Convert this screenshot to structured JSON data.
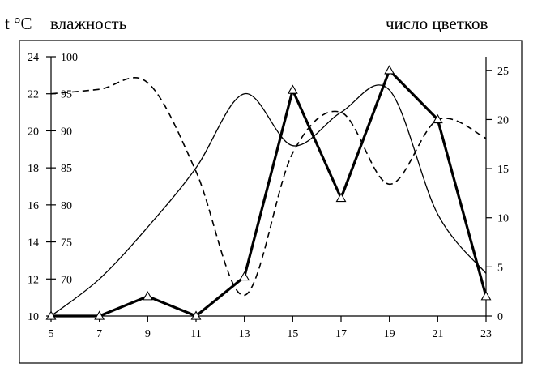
{
  "labels": {
    "temp_title": "t °C",
    "humidity_title": "влажность",
    "flowers_title": "число цветков"
  },
  "chart_data": {
    "type": "line",
    "x": [
      5,
      7,
      9,
      11,
      13,
      15,
      17,
      19,
      21,
      23
    ],
    "x_ticks": [
      "5",
      "7",
      "9",
      "11",
      "13",
      "15",
      "17",
      "19",
      "21",
      "23"
    ],
    "xlim": [
      5,
      23
    ],
    "axes": {
      "temperature": {
        "title": "t °C",
        "ticks": [
          "10",
          "12",
          "14",
          "16",
          "18",
          "20",
          "22",
          "24"
        ],
        "ylim": [
          10,
          24
        ]
      },
      "humidity": {
        "title": "влажность",
        "ticks": [
          "70",
          "75",
          "80",
          "85",
          "90",
          "95",
          "100"
        ],
        "ylim": [
          65,
          100
        ]
      },
      "flowers": {
        "title": "число цветков",
        "ticks": [
          "0",
          "5",
          "10",
          "15",
          "20",
          "25"
        ],
        "ylim": [
          0,
          27
        ]
      }
    },
    "series": [
      {
        "style": "thin-solid",
        "axis": "temperature",
        "x": [
          5,
          7,
          9,
          11,
          13,
          15,
          17,
          19,
          21,
          23
        ],
        "values": [
          10.0,
          12.0,
          14.8,
          18.0,
          22.0,
          19.2,
          21.0,
          22.2,
          15.5,
          12.3
        ]
      },
      {
        "style": "dashed",
        "axis": "humidity",
        "x": [
          5,
          7,
          9,
          11,
          13,
          15,
          17,
          19,
          21,
          23
        ],
        "values": [
          95.0,
          95.6,
          96.5,
          84.5,
          67.8,
          87.0,
          92.5,
          82.8,
          91.5,
          89.0
        ]
      },
      {
        "style": "thick-solid-triangle-markers",
        "axis": "flowers",
        "x": [
          5,
          7,
          9,
          11,
          13,
          15,
          17,
          19,
          21,
          23
        ],
        "values": [
          0,
          0,
          2,
          0,
          4,
          23,
          12,
          25,
          20,
          2
        ]
      }
    ]
  }
}
